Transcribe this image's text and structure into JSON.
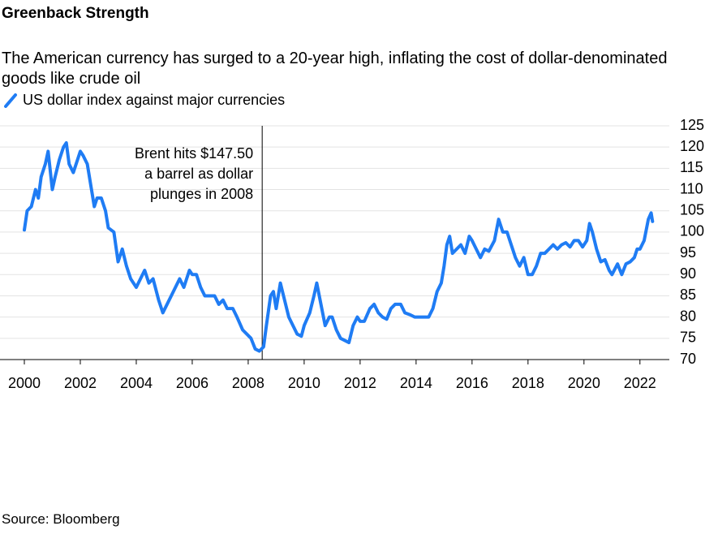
{
  "chart_data": {
    "type": "line",
    "title": "Greenback Strength",
    "subtitle": "The American currency has surged to a 20-year high, inflating the cost of dollar-denominated goods like crude oil",
    "source": "Source: Bloomberg",
    "x": [
      2000.0,
      2000.1,
      2000.25,
      2000.4,
      2000.5,
      2000.6,
      2000.75,
      2000.85,
      2001.0,
      2001.1,
      2001.25,
      2001.4,
      2001.5,
      2001.6,
      2001.75,
      2001.9,
      2002.0,
      2002.1,
      2002.25,
      2002.4,
      2002.5,
      2002.6,
      2002.75,
      2002.9,
      2003.0,
      2003.2,
      2003.35,
      2003.5,
      2003.65,
      2003.8,
      2004.0,
      2004.15,
      2004.3,
      2004.45,
      2004.6,
      2004.8,
      2004.95,
      2005.1,
      2005.25,
      2005.4,
      2005.55,
      2005.7,
      2005.9,
      2006.0,
      2006.15,
      2006.3,
      2006.45,
      2006.6,
      2006.8,
      2006.95,
      2007.1,
      2007.25,
      2007.45,
      2007.6,
      2007.8,
      2007.95,
      2008.1,
      2008.25,
      2008.4,
      2008.55,
      2008.65,
      2008.8,
      2008.9,
      2009.0,
      2009.15,
      2009.3,
      2009.45,
      2009.6,
      2009.75,
      2009.9,
      2010.0,
      2010.2,
      2010.35,
      2010.45,
      2010.6,
      2010.75,
      2010.9,
      2011.0,
      2011.15,
      2011.3,
      2011.45,
      2011.6,
      2011.75,
      2011.9,
      2012.0,
      2012.15,
      2012.35,
      2012.5,
      2012.65,
      2012.8,
      2012.95,
      2013.1,
      2013.25,
      2013.45,
      2013.6,
      2013.8,
      2013.95,
      2014.1,
      2014.3,
      2014.45,
      2014.6,
      2014.75,
      2014.9,
      2015.0,
      2015.1,
      2015.2,
      2015.3,
      2015.45,
      2015.6,
      2015.75,
      2015.9,
      2016.0,
      2016.15,
      2016.3,
      2016.45,
      2016.6,
      2016.8,
      2016.95,
      2017.1,
      2017.25,
      2017.4,
      2017.55,
      2017.7,
      2017.85,
      2018.0,
      2018.15,
      2018.3,
      2018.45,
      2018.6,
      2018.75,
      2018.9,
      2019.05,
      2019.2,
      2019.35,
      2019.5,
      2019.65,
      2019.8,
      2019.95,
      2020.1,
      2020.2,
      2020.3,
      2020.45,
      2020.6,
      2020.75,
      2020.9,
      2021.0,
      2021.2,
      2021.35,
      2021.5,
      2021.65,
      2021.8,
      2021.9,
      2022.0,
      2022.15,
      2022.3,
      2022.4,
      2022.45
    ],
    "series": [
      {
        "name": "US dollar index against major currencies",
        "color": "#1f7cf4",
        "values": [
          100.5,
          105,
          106,
          110,
          108,
          113,
          116,
          119,
          110,
          113,
          117,
          120,
          121,
          116,
          114,
          117,
          119,
          118,
          116,
          110,
          106,
          108,
          108,
          105,
          101,
          100,
          93,
          96,
          92,
          89,
          87,
          89,
          91,
          88,
          89,
          84,
          81,
          83,
          85,
          87,
          89,
          87,
          91,
          90,
          90,
          87,
          85,
          85,
          85,
          83,
          84,
          82,
          82,
          80,
          77,
          76,
          75,
          72.5,
          72,
          73,
          78,
          85,
          86,
          82,
          88,
          84,
          80,
          78,
          76,
          75.5,
          78,
          81,
          85,
          88,
          83,
          78,
          80,
          80,
          77,
          75,
          74.5,
          74,
          78,
          80,
          79,
          79,
          82,
          83,
          81,
          80,
          79.5,
          82,
          83,
          83,
          81,
          80.5,
          80,
          80,
          80,
          80,
          82,
          86,
          88,
          92,
          97,
          99,
          95,
          96,
          97,
          95,
          99,
          98,
          96,
          94,
          96,
          95.5,
          98,
          103,
          100,
          100,
          97,
          94,
          92,
          94,
          90,
          90,
          92,
          95,
          95,
          96,
          97,
          96,
          97,
          97.5,
          96.5,
          98,
          98,
          96.5,
          98,
          102,
          100,
          96,
          93,
          93.5,
          91,
          90,
          92.5,
          90,
          92.5,
          93,
          94,
          96,
          96,
          98,
          103,
          104.5,
          102.5
        ]
      }
    ],
    "annotations": [
      {
        "lines": [
          "Brent hits $147.50",
          "a barrel as dollar",
          "plunges in 2008"
        ],
        "x": 2008.5
      }
    ],
    "xlim": [
      1999.13,
      2023.05
    ],
    "xticks": [
      2000,
      2002,
      2004,
      2006,
      2008,
      2010,
      2012,
      2014,
      2016,
      2018,
      2020,
      2022
    ],
    "ylim": [
      70,
      125
    ],
    "yticks": [
      70,
      75,
      80,
      85,
      90,
      95,
      100,
      105,
      110,
      115,
      120,
      125
    ],
    "grid": true
  }
}
